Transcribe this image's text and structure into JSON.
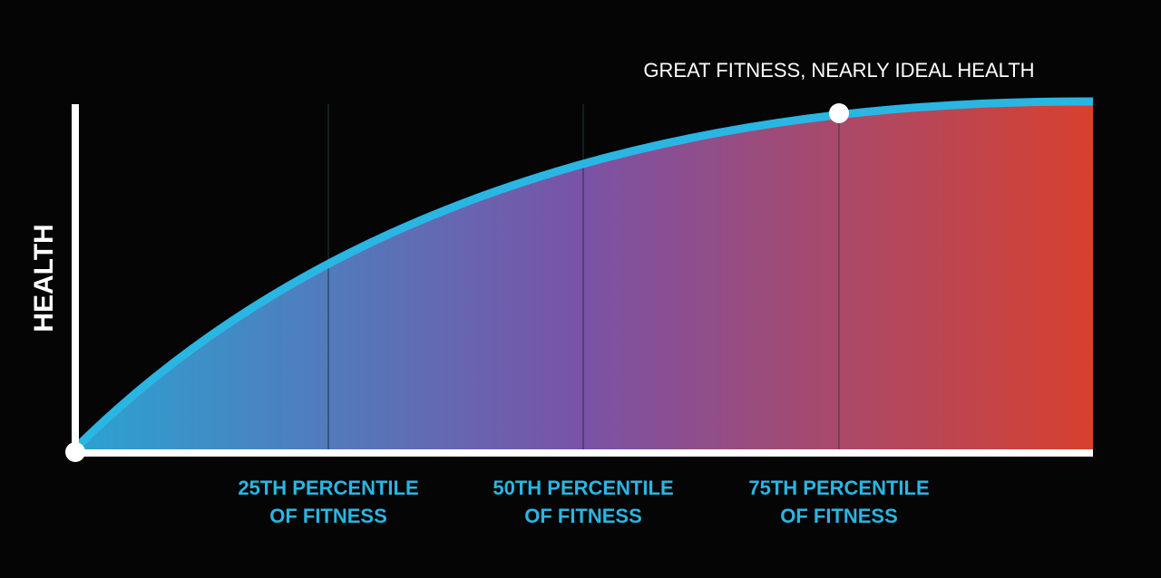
{
  "y_axis_label": "HEALTH",
  "annotation": "GREAT FITNESS, NEARLY IDEAL HEALTH",
  "x_labels": [
    {
      "lines": [
        "25TH PERCENTILE",
        "OF FITNESS"
      ]
    },
    {
      "lines": [
        "50TH PERCENTILE",
        "OF FITNESS"
      ]
    },
    {
      "lines": [
        "75TH PERCENTILE",
        "OF FITNESS"
      ]
    }
  ]
}
